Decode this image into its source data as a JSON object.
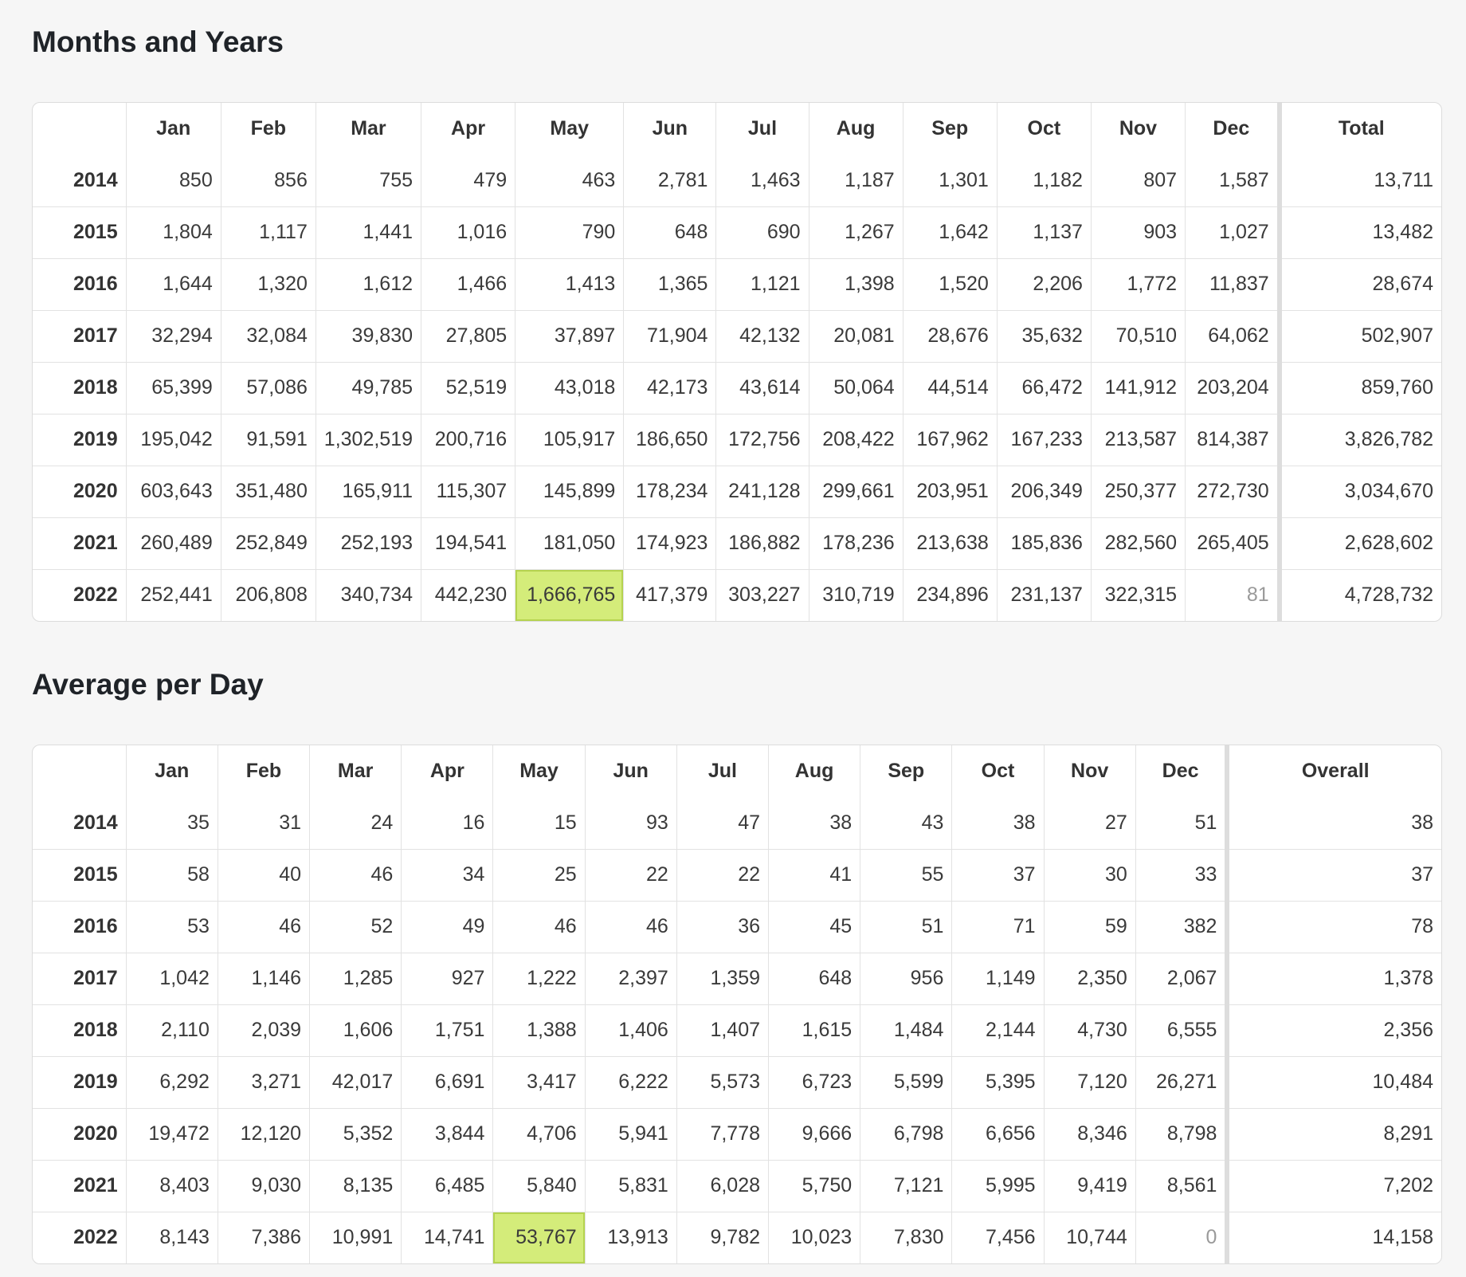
{
  "months_table": {
    "title": "Months and Years",
    "columns": [
      "",
      "Jan",
      "Feb",
      "Mar",
      "Apr",
      "May",
      "Jun",
      "Jul",
      "Aug",
      "Sep",
      "Oct",
      "Nov",
      "Dec",
      "Total"
    ],
    "rows": [
      {
        "year": "2014",
        "values": [
          "850",
          "856",
          "755",
          "479",
          "463",
          "2,781",
          "1,463",
          "1,187",
          "1,301",
          "1,182",
          "807",
          "1,587"
        ],
        "total": "13,711"
      },
      {
        "year": "2015",
        "values": [
          "1,804",
          "1,117",
          "1,441",
          "1,016",
          "790",
          "648",
          "690",
          "1,267",
          "1,642",
          "1,137",
          "903",
          "1,027"
        ],
        "total": "13,482"
      },
      {
        "year": "2016",
        "values": [
          "1,644",
          "1,320",
          "1,612",
          "1,466",
          "1,413",
          "1,365",
          "1,121",
          "1,398",
          "1,520",
          "2,206",
          "1,772",
          "11,837"
        ],
        "total": "28,674"
      },
      {
        "year": "2017",
        "values": [
          "32,294",
          "32,084",
          "39,830",
          "27,805",
          "37,897",
          "71,904",
          "42,132",
          "20,081",
          "28,676",
          "35,632",
          "70,510",
          "64,062"
        ],
        "total": "502,907"
      },
      {
        "year": "2018",
        "values": [
          "65,399",
          "57,086",
          "49,785",
          "52,519",
          "43,018",
          "42,173",
          "43,614",
          "50,064",
          "44,514",
          "66,472",
          "141,912",
          "203,204"
        ],
        "total": "859,760"
      },
      {
        "year": "2019",
        "values": [
          "195,042",
          "91,591",
          "1,302,519",
          "200,716",
          "105,917",
          "186,650",
          "172,756",
          "208,422",
          "167,962",
          "167,233",
          "213,587",
          "814,387"
        ],
        "total": "3,826,782"
      },
      {
        "year": "2020",
        "values": [
          "603,643",
          "351,480",
          "165,911",
          "115,307",
          "145,899",
          "178,234",
          "241,128",
          "299,661",
          "203,951",
          "206,349",
          "250,377",
          "272,730"
        ],
        "total": "3,034,670"
      },
      {
        "year": "2021",
        "values": [
          "260,489",
          "252,849",
          "252,193",
          "194,541",
          "181,050",
          "174,923",
          "186,882",
          "178,236",
          "213,638",
          "185,836",
          "282,560",
          "265,405"
        ],
        "total": "2,628,602"
      },
      {
        "year": "2022",
        "values": [
          "252,441",
          "206,808",
          "340,734",
          "442,230",
          "1,666,765",
          "417,379",
          "303,227",
          "310,719",
          "234,896",
          "231,137",
          "322,315",
          "81"
        ],
        "total": "4,728,732"
      }
    ],
    "col_widths": [
      117,
      119,
      119,
      132,
      118,
      136,
      116,
      116,
      118,
      118,
      118,
      118,
      118,
      203
    ]
  },
  "avg_table": {
    "title": "Average per Day",
    "columns": [
      "",
      "Jan",
      "Feb",
      "Mar",
      "Apr",
      "May",
      "Jun",
      "Jul",
      "Aug",
      "Sep",
      "Oct",
      "Nov",
      "Dec",
      "Overall"
    ],
    "rows": [
      {
        "year": "2014",
        "values": [
          "35",
          "31",
          "24",
          "16",
          "15",
          "93",
          "47",
          "38",
          "43",
          "38",
          "27",
          "51"
        ],
        "total": "38"
      },
      {
        "year": "2015",
        "values": [
          "58",
          "40",
          "46",
          "34",
          "25",
          "22",
          "22",
          "41",
          "55",
          "37",
          "30",
          "33"
        ],
        "total": "37"
      },
      {
        "year": "2016",
        "values": [
          "53",
          "46",
          "52",
          "49",
          "46",
          "46",
          "36",
          "45",
          "51",
          "71",
          "59",
          "382"
        ],
        "total": "78"
      },
      {
        "year": "2017",
        "values": [
          "1,042",
          "1,146",
          "1,285",
          "927",
          "1,222",
          "2,397",
          "1,359",
          "648",
          "956",
          "1,149",
          "2,350",
          "2,067"
        ],
        "total": "1,378"
      },
      {
        "year": "2018",
        "values": [
          "2,110",
          "2,039",
          "1,606",
          "1,751",
          "1,388",
          "1,406",
          "1,407",
          "1,615",
          "1,484",
          "2,144",
          "4,730",
          "6,555"
        ],
        "total": "2,356"
      },
      {
        "year": "2019",
        "values": [
          "6,292",
          "3,271",
          "42,017",
          "6,691",
          "3,417",
          "6,222",
          "5,573",
          "6,723",
          "5,599",
          "5,395",
          "7,120",
          "26,271"
        ],
        "total": "10,484"
      },
      {
        "year": "2020",
        "values": [
          "19,472",
          "12,120",
          "5,352",
          "3,844",
          "4,706",
          "5,941",
          "7,778",
          "9,666",
          "6,798",
          "6,656",
          "8,346",
          "8,798"
        ],
        "total": "8,291"
      },
      {
        "year": "2021",
        "values": [
          "8,403",
          "9,030",
          "8,135",
          "6,485",
          "5,840",
          "5,831",
          "6,028",
          "5,750",
          "7,121",
          "5,995",
          "9,419",
          "8,561"
        ],
        "total": "7,202"
      },
      {
        "year": "2022",
        "values": [
          "8,143",
          "7,386",
          "10,991",
          "14,741",
          "53,767",
          "13,913",
          "9,782",
          "10,023",
          "7,830",
          "7,456",
          "10,744",
          "0"
        ],
        "total": "14,158"
      }
    ],
    "col_widths": [
      117,
      115,
      115,
      115,
      115,
      115,
      115,
      115,
      115,
      115,
      115,
      115,
      115,
      268
    ]
  },
  "highlight": {
    "row": "2022",
    "month": "May",
    "color": "#d4ec7a"
  },
  "muted_cell": {
    "row": "2022",
    "month": "Dec",
    "color": "#9a9a9a"
  }
}
